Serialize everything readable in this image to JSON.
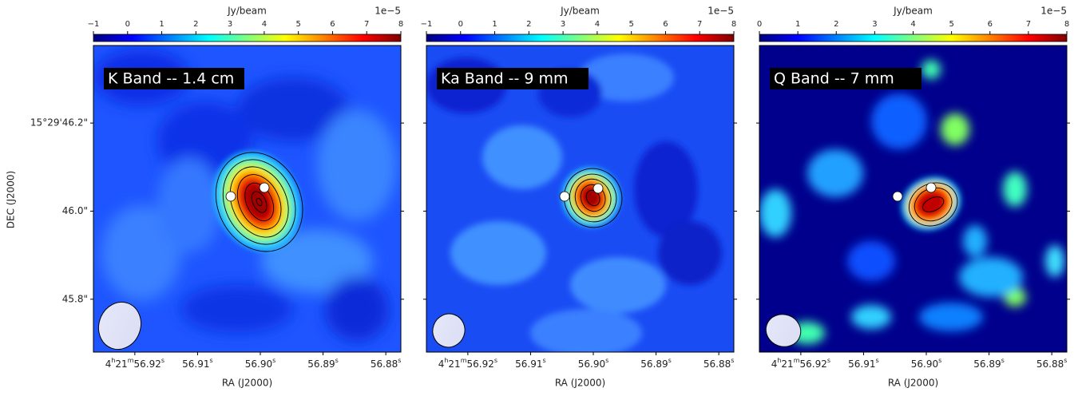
{
  "chart_data": [
    {
      "type": "image",
      "title": "K Band -- 1.4 cm",
      "colorbar_label": "Jy/beam",
      "colorbar_scale": "1e−5",
      "colormap": "jet",
      "clim": [
        -1,
        8
      ],
      "cticks": [
        {
          "value": -1,
          "label": "−1"
        },
        0,
        1,
        2,
        3,
        4,
        5,
        6,
        7,
        8
      ],
      "xlabel": "RA (J2000)",
      "ylabel": "DEC (J2000)",
      "xlim": [
        56.9266,
        56.8776
      ],
      "xticks": [
        {
          "value": 56.92,
          "label": "4h21m56.92s"
        },
        {
          "value": 56.91,
          "label": "56.91s"
        },
        {
          "value": 56.9,
          "label": "56.90s"
        },
        {
          "value": 56.89,
          "label": "56.89s"
        },
        {
          "value": 56.88,
          "label": "56.88s"
        }
      ],
      "ylim": [
        45.68,
        46.376
      ],
      "yticks": [
        {
          "value": 45.8,
          "label": "45.8\""
        },
        {
          "value": 46.0,
          "label": "46.0\""
        },
        {
          "value": 46.2,
          "label": "15°29'46.2\""
        }
      ]
    },
    {
      "type": "image",
      "title": "Ka Band -- 9 mm",
      "colorbar_label": "Jy/beam",
      "colorbar_scale": "1e−5",
      "colormap": "jet",
      "clim": [
        -1,
        8
      ],
      "cticks": [
        {
          "value": -1,
          "label": "−1"
        },
        0,
        1,
        2,
        3,
        4,
        5,
        6,
        7,
        8
      ],
      "xlabel": "RA (J2000)",
      "xlim": [
        56.9266,
        56.8776
      ],
      "xticks": [
        {
          "value": 56.92,
          "label": "4h21m56.92s"
        },
        {
          "value": 56.91,
          "label": "56.91s"
        },
        {
          "value": 56.9,
          "label": "56.90s"
        },
        {
          "value": 56.89,
          "label": "56.89s"
        },
        {
          "value": 56.88,
          "label": "56.88s"
        }
      ]
    },
    {
      "type": "image",
      "title": "Q Band -- 7 mm",
      "colorbar_label": "Jy/beam",
      "colorbar_scale": "1e−5",
      "colormap": "jet",
      "clim": [
        0,
        8
      ],
      "cticks": [
        0,
        1,
        2,
        3,
        4,
        5,
        6,
        7,
        8
      ],
      "xlabel": "RA (J2000)",
      "xlim": [
        56.9266,
        56.8776
      ],
      "xticks": [
        {
          "value": 56.92,
          "label": "4h21m56.92s"
        },
        {
          "value": 56.91,
          "label": "56.91s"
        },
        {
          "value": 56.9,
          "label": "56.90s"
        },
        {
          "value": 56.89,
          "label": "56.89s"
        },
        {
          "value": 56.88,
          "label": "56.88s"
        }
      ]
    }
  ]
}
